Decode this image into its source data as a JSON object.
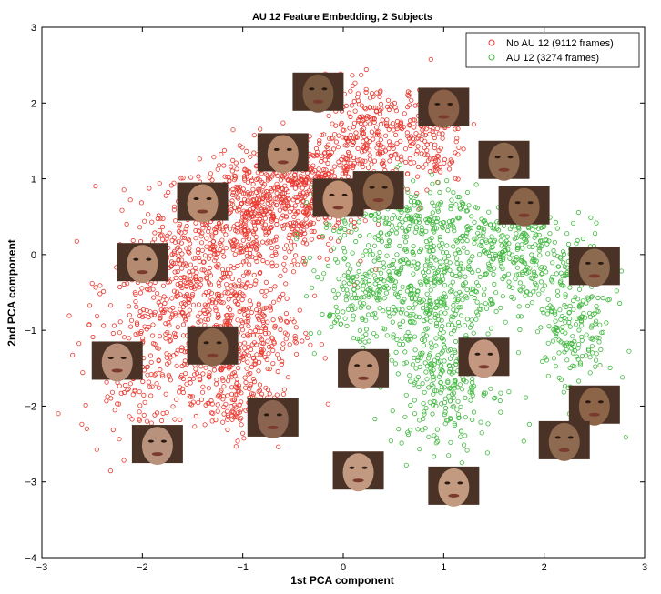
{
  "chart_data": {
    "type": "scatter",
    "title": "AU 12 Feature Embedding, 2 Subjects",
    "xlabel": "1st PCA component",
    "ylabel": "2nd PCA component",
    "xlim": [
      -3,
      3
    ],
    "ylim": [
      -4,
      3
    ],
    "xticks": [
      "−3",
      "−2",
      "−1",
      "0",
      "1",
      "2",
      "3"
    ],
    "yticks": [
      "3",
      "2",
      "1",
      "0",
      "−1",
      "−2",
      "−3",
      "−4"
    ],
    "grid": false,
    "legend_position": "top-right",
    "series": [
      {
        "name": "No AU 12 (9112 frames)",
        "color": "#e8392f",
        "marker": "open-circle",
        "clusters": [
          {
            "cx": -0.9,
            "cy": 0.5,
            "sx": 0.45,
            "sy": 0.35,
            "share": 0.26
          },
          {
            "cx": -0.3,
            "cy": 1.0,
            "sx": 0.35,
            "sy": 0.3,
            "share": 0.16
          },
          {
            "cx": 0.3,
            "cy": 1.6,
            "sx": 0.3,
            "sy": 0.35,
            "share": 0.11
          },
          {
            "cx": -1.6,
            "cy": -0.4,
            "sx": 0.35,
            "sy": 0.45,
            "share": 0.14
          },
          {
            "cx": -1.0,
            "cy": -1.0,
            "sx": 0.3,
            "sy": 0.45,
            "share": 0.14
          },
          {
            "cx": -2.0,
            "cy": -1.5,
            "sx": 0.3,
            "sy": 0.45,
            "share": 0.08
          },
          {
            "cx": -1.1,
            "cy": -1.9,
            "sx": 0.2,
            "sy": 0.25,
            "share": 0.06
          },
          {
            "cx": 0.8,
            "cy": 1.5,
            "sx": 0.2,
            "sy": 0.3,
            "share": 0.05
          }
        ]
      },
      {
        "name": "AU 12 (3274 frames)",
        "color": "#41b83f",
        "marker": "open-circle",
        "clusters": [
          {
            "cx": 0.8,
            "cy": -0.4,
            "sx": 0.4,
            "sy": 0.35,
            "share": 0.2
          },
          {
            "cx": 1.4,
            "cy": 0.2,
            "sx": 0.35,
            "sy": 0.35,
            "share": 0.14
          },
          {
            "cx": 1.0,
            "cy": -1.6,
            "sx": 0.25,
            "sy": 0.5,
            "share": 0.2
          },
          {
            "cx": 2.3,
            "cy": -0.9,
            "sx": 0.2,
            "sy": 0.5,
            "share": 0.14
          },
          {
            "cx": 0.5,
            "cy": 0.5,
            "sx": 0.35,
            "sy": 0.25,
            "share": 0.12
          },
          {
            "cx": 0.2,
            "cy": -0.6,
            "sx": 0.25,
            "sy": 0.4,
            "share": 0.1
          },
          {
            "cx": 1.9,
            "cy": 0.0,
            "sx": 0.25,
            "sy": 0.3,
            "share": 0.1
          }
        ]
      }
    ],
    "face_thumbnails": [
      {
        "x": -0.25,
        "y": 2.15,
        "tone": "#7a5a40"
      },
      {
        "x": 1.0,
        "y": 1.95,
        "tone": "#8a6048"
      },
      {
        "x": -0.6,
        "y": 1.35,
        "tone": "#b68a6e"
      },
      {
        "x": 1.6,
        "y": 1.25,
        "tone": "#8e6a50"
      },
      {
        "x": -1.4,
        "y": 0.7,
        "tone": "#b88c70"
      },
      {
        "x": -0.05,
        "y": 0.75,
        "tone": "#c09074"
      },
      {
        "x": 0.35,
        "y": 0.85,
        "tone": "#8c6448"
      },
      {
        "x": 1.8,
        "y": 0.65,
        "tone": "#8a6448"
      },
      {
        "x": -2.0,
        "y": -0.1,
        "tone": "#b48a70"
      },
      {
        "x": 2.5,
        "y": -0.15,
        "tone": "#8c6a50"
      },
      {
        "x": -1.3,
        "y": -1.2,
        "tone": "#8a6448"
      },
      {
        "x": -2.25,
        "y": -1.4,
        "tone": "#b8907a"
      },
      {
        "x": 1.4,
        "y": -1.35,
        "tone": "#c49880"
      },
      {
        "x": 0.2,
        "y": -1.5,
        "tone": "#bc9076"
      },
      {
        "x": 2.5,
        "y": -1.98,
        "tone": "#8c6448"
      },
      {
        "x": -0.7,
        "y": -2.15,
        "tone": "#8a6450"
      },
      {
        "x": 2.2,
        "y": -2.45,
        "tone": "#8e6a50"
      },
      {
        "x": -1.85,
        "y": -2.5,
        "tone": "#b8927c"
      },
      {
        "x": 0.15,
        "y": -2.85,
        "tone": "#c29a82"
      },
      {
        "x": 1.1,
        "y": -3.05,
        "tone": "#c29a80"
      }
    ]
  }
}
